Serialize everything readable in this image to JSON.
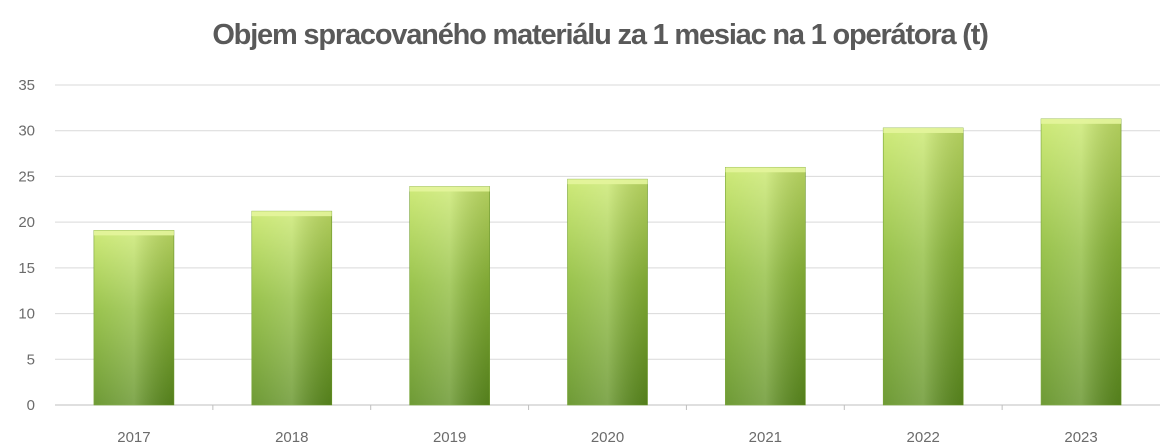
{
  "chart_data": {
    "type": "bar",
    "title": "Objem spracovaného materiálu za 1 mesiac na 1 operátora (t)",
    "xlabel": "",
    "ylabel": "",
    "categories": [
      "2017",
      "2018",
      "2019",
      "2020",
      "2021",
      "2022",
      "2023"
    ],
    "values": [
      19.1,
      21.2,
      23.9,
      24.7,
      26.0,
      30.3,
      31.3
    ],
    "ylim": [
      0,
      35
    ],
    "yticks": [
      0,
      5,
      10,
      15,
      20,
      25,
      30,
      35
    ],
    "grid": true,
    "legend": "none",
    "colors": {
      "bar_top": "#c9e86a",
      "bar_mid": "#8fbd3a",
      "bar_bottom": "#5e8f1f",
      "grid": "#d9d9d9",
      "text": "#595959"
    }
  }
}
